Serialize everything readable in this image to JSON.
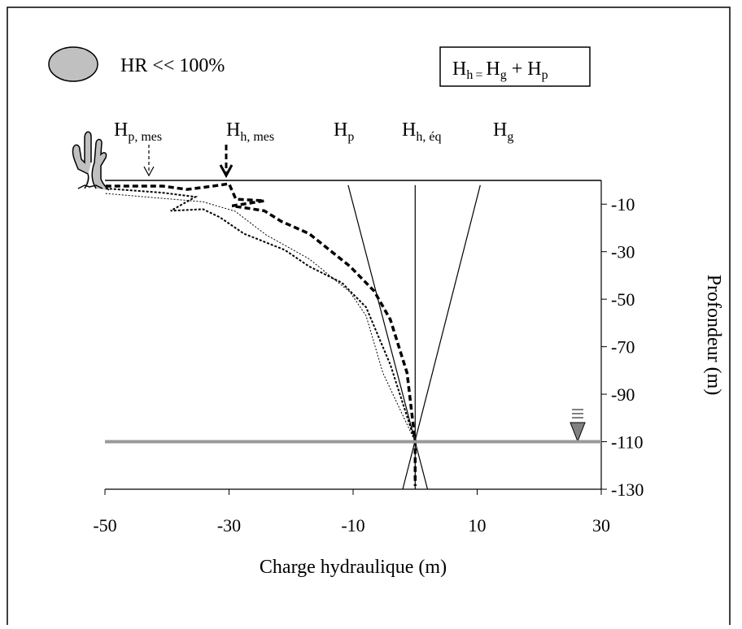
{
  "chart_data": {
    "type": "line",
    "x_label": "Charge hydraulique (m)",
    "y_label": "Profondeur (m)",
    "condition": "HR << 100%",
    "equation": {
      "terms": [
        {
          "base": "H",
          "sub": "h"
        },
        {
          "base": "H",
          "sub": "g"
        },
        {
          "base": "H",
          "sub": "p"
        }
      ],
      "ops": [
        "=",
        "+"
      ]
    },
    "annotations": [
      {
        "base": "H",
        "sub": "p, mes"
      },
      {
        "base": "H",
        "sub": "h, mes"
      },
      {
        "base": "H",
        "sub": "p"
      },
      {
        "base": "H",
        "sub": "h, éq"
      },
      {
        "base": "H",
        "sub": "g"
      }
    ],
    "xlim": [
      -50,
      30
    ],
    "xticks": [
      -50,
      -30,
      -10,
      10,
      30
    ],
    "ylim": [
      -130,
      0
    ],
    "yticks": [
      -10,
      -30,
      -50,
      -70,
      -90,
      -110,
      -130
    ],
    "series": [
      {
        "color": "#000000",
        "line_style": "dotted",
        "x": [
          -49.9,
          -40.7,
          -35.4,
          -39.4,
          -34.2,
          -31.5,
          -27.6,
          -21,
          -17.1,
          -11.8,
          -7.9,
          -4,
          0
        ],
        "values": [
          -3.4,
          -5.2,
          -6.9,
          -12.8,
          -12.1,
          -15.5,
          -22.4,
          -29.3,
          -36.2,
          -43.1,
          -53.4,
          -77.6,
          -110
        ]
      },
      {
        "color": "#000000",
        "line_style": "fine-dotted",
        "x": [
          -49.9,
          -34.2,
          -29,
          -24,
          -17.1,
          -10.5,
          -7.9,
          -5.2,
          0
        ],
        "values": [
          -5.5,
          -9,
          -13,
          -23,
          -33,
          -47,
          -57,
          -81,
          -110
        ]
      },
      {
        "color": "#000000",
        "line_style": "dashed",
        "x": [
          -49.9,
          -40.7,
          -36.8,
          -32.6,
          -30,
          -28.9,
          -24.3,
          -29.5,
          -24.3,
          -21.6,
          -17.1,
          -10.5,
          -6.6,
          -4,
          -1.3,
          0,
          0
        ],
        "values": [
          -2.4,
          -2.4,
          -3.8,
          -2.4,
          -1.4,
          -7.9,
          -8.6,
          -10.7,
          -12.8,
          -17.2,
          -22.4,
          -36.2,
          -46.6,
          -58.6,
          -81,
          -110,
          -128.6
        ]
      },
      {
        "color": "#000000",
        "line_style": "solid",
        "x": [
          -10.8,
          2
        ],
        "values": [
          -2,
          -130
        ]
      },
      {
        "color": "#000000",
        "line_style": "solid",
        "x": [
          0,
          0
        ],
        "values": [
          -2,
          -130
        ]
      },
      {
        "color": "#000000",
        "line_style": "solid",
        "x": [
          10.5,
          -2
        ],
        "values": [
          -2,
          -130
        ]
      },
      {
        "color": "#999999",
        "line_style": "thick",
        "x": [
          -50,
          30
        ],
        "values": [
          -110,
          -110
        ]
      }
    ]
  }
}
